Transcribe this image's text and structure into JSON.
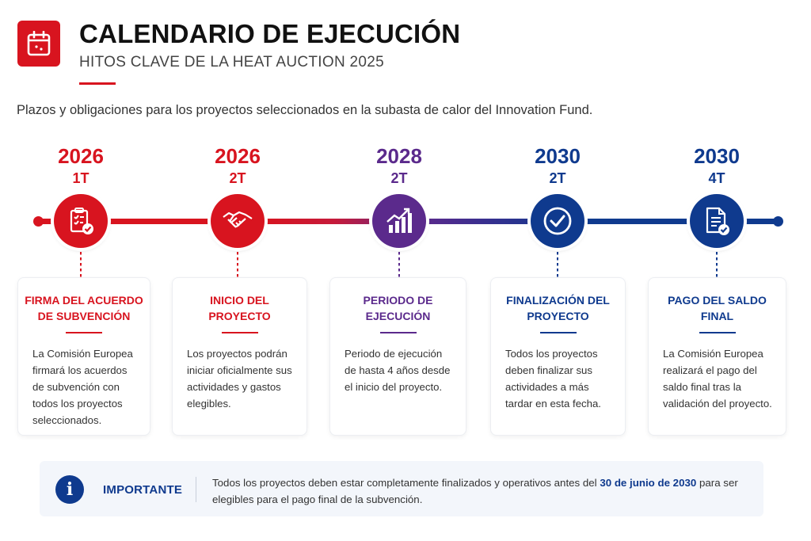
{
  "header": {
    "title": "CALENDARIO DE EJECUCIÓN",
    "subtitle": "HITOS CLAVE DE LA HEAT AUCTION 2025",
    "icon": "calendar-icon",
    "accent": "#d8141f"
  },
  "intro": "Plazos y obligaciones para los proyectos seleccionados en la subasta de calor del Innovation Fund.",
  "milestones": [
    {
      "year": "2026",
      "quarter": "1T",
      "color": "#d8141f",
      "icon": "signed-checklist-icon",
      "title": "FIRMA DEL ACUERDO DE SUBVENCIÓN",
      "text": "La Comisión Europea firmará los acuerdos de subvención con todos los proyectos seleccionados."
    },
    {
      "year": "2026",
      "quarter": "2T",
      "color": "#d8141f",
      "icon": "handshake-icon",
      "title": "INICIO DEL PROYECTO",
      "text": "Los proyectos podrán iniciar oficialmente sus actividades y gastos elegibles."
    },
    {
      "year": "2028",
      "quarter": "2T",
      "color": "#5b2a8c",
      "icon": "growth-chart-icon",
      "title": "PERIODO DE EJECUCIÓN",
      "text": "Periodo de ejecución de hasta 4 años desde el inicio del proyecto."
    },
    {
      "year": "2030",
      "quarter": "2T",
      "color": "#0f3a8e",
      "icon": "check-circle-icon",
      "title": "FINALIZACIÓN DEL PROYECTO",
      "text": "Todos los proyectos deben finalizar sus actividades a más tardar en esta fecha."
    },
    {
      "year": "2030",
      "quarter": "4T",
      "color": "#0f3a8e",
      "icon": "document-check-icon",
      "title": "PAGO DEL SALDO FINAL",
      "text": "La Comisión Europea realizará el pago del saldo final tras la validación del proyecto."
    }
  ],
  "notice": {
    "icon": "info-icon",
    "label": "IMPORTANTE",
    "text_before": "Todos los proyectos deben estar completamente finalizados y operativos antes del",
    "highlight": "30 de junio de 2030",
    "text_after": "para ser elegibles para el pago final de la subvención."
  }
}
